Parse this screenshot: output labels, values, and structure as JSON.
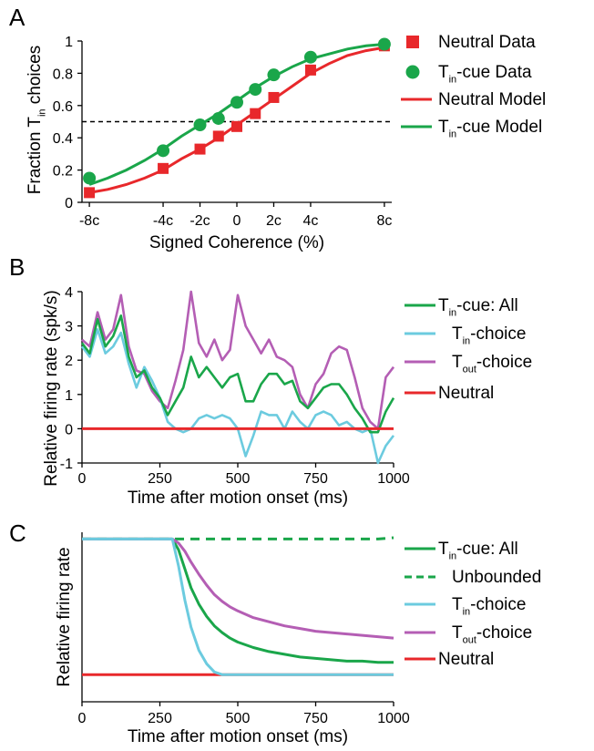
{
  "colors": {
    "neutral": "#e8282b",
    "tin_cue": "#1aa64a",
    "tin_choice": "#6ccbdf",
    "tout_choice": "#b45eb4"
  },
  "chart_data": [
    {
      "panel": "A",
      "type": "scatter",
      "xlabel": "Signed Coherence (%)",
      "ylabel_main": "Fraction T",
      "ylabel_sub": "in",
      "ylabel_end": " choices",
      "x_categories": [
        "-8c",
        "-4c",
        "-2c",
        "0",
        "2c",
        "4c",
        "8c"
      ],
      "x_values": [
        -8,
        -4,
        -2,
        0,
        2,
        4,
        8
      ],
      "ylim": [
        0,
        1
      ],
      "y_ticks": [
        "0",
        "0.2",
        "0.4",
        "0.6",
        "0.8",
        "1"
      ],
      "y_tick_values": [
        0,
        0.2,
        0.4,
        0.6,
        0.8,
        1
      ],
      "reference_line": 0.5,
      "series": [
        {
          "name": "Neutral Data",
          "marker": "square",
          "x": [
            -8,
            -4,
            -2,
            -1,
            0,
            1,
            2,
            4,
            8
          ],
          "y": [
            0.06,
            0.21,
            0.33,
            0.41,
            0.47,
            0.55,
            0.65,
            0.82,
            0.97
          ]
        },
        {
          "name": "Tin-cue Data",
          "marker": "circle",
          "x": [
            -8,
            -4,
            -2,
            -1,
            0,
            1,
            2,
            4,
            8
          ],
          "y": [
            0.15,
            0.32,
            0.48,
            0.52,
            0.62,
            0.7,
            0.79,
            0.9,
            0.98
          ]
        },
        {
          "name": "Neutral Model",
          "marker": "line",
          "x": [
            -8,
            -7,
            -6,
            -5,
            -4,
            -3,
            -2,
            -1,
            0,
            1,
            2,
            3,
            4,
            5,
            6,
            7,
            8
          ],
          "y": [
            0.06,
            0.08,
            0.11,
            0.15,
            0.2,
            0.27,
            0.33,
            0.4,
            0.48,
            0.56,
            0.64,
            0.72,
            0.8,
            0.86,
            0.91,
            0.94,
            0.96
          ]
        },
        {
          "name": "Tin-cue Model",
          "marker": "line",
          "x": [
            -8,
            -7,
            -6,
            -5,
            -4,
            -3,
            -2,
            -1,
            0,
            1,
            2,
            3,
            4,
            5,
            6,
            7,
            8
          ],
          "y": [
            0.11,
            0.15,
            0.2,
            0.26,
            0.33,
            0.41,
            0.48,
            0.55,
            0.63,
            0.71,
            0.78,
            0.84,
            0.89,
            0.92,
            0.95,
            0.97,
            0.98
          ]
        }
      ],
      "legend": [
        {
          "main": "Neutral Data",
          "sub": "",
          "tail": ""
        },
        {
          "main": "T",
          "sub": "in",
          "tail": "-cue Data"
        },
        {
          "main": "Neutral Model",
          "sub": "",
          "tail": ""
        },
        {
          "main": "T",
          "sub": "in",
          "tail": "-cue Model"
        }
      ]
    },
    {
      "panel": "B",
      "type": "line",
      "xlabel": "Time after motion onset (ms)",
      "ylabel": "Relative firing rate (spk/s)",
      "xlim": [
        0,
        1000
      ],
      "ylim": [
        -1,
        4
      ],
      "x_ticks": [
        "0",
        "250",
        "500",
        "750",
        "1000"
      ],
      "x_tick_values": [
        0,
        250,
        500,
        750,
        1000
      ],
      "y_ticks": [
        "-1",
        "0",
        "1",
        "2",
        "3",
        "4"
      ],
      "y_tick_values": [
        -1,
        0,
        1,
        2,
        3,
        4
      ],
      "x": [
        0,
        25,
        50,
        75,
        100,
        125,
        150,
        175,
        200,
        225,
        250,
        275,
        300,
        325,
        350,
        375,
        400,
        425,
        450,
        475,
        500,
        525,
        550,
        575,
        600,
        625,
        650,
        675,
        700,
        725,
        750,
        775,
        800,
        825,
        850,
        875,
        900,
        925,
        950,
        975,
        1000
      ],
      "series": [
        {
          "name": "Tin-cue: All",
          "values": [
            2.5,
            2.2,
            3.2,
            2.4,
            2.7,
            3.3,
            2.1,
            1.5,
            1.7,
            1.2,
            0.9,
            0.4,
            0.8,
            1.2,
            2.1,
            1.5,
            1.8,
            1.5,
            1.2,
            1.5,
            1.6,
            0.8,
            0.8,
            1.3,
            1.6,
            1.6,
            1.3,
            1.4,
            0.8,
            0.6,
            0.9,
            1.2,
            1.3,
            1.3,
            1.0,
            0.6,
            0.3,
            -0.1,
            -0.1,
            0.5,
            0.9
          ]
        },
        {
          "name": "Tin-choice",
          "values": [
            2.4,
            2.1,
            2.9,
            2.2,
            2.4,
            2.8,
            1.9,
            1.2,
            1.8,
            1.4,
            0.9,
            0.2,
            0.0,
            -0.1,
            0.0,
            0.3,
            0.4,
            0.3,
            0.4,
            0.3,
            0.0,
            -0.8,
            -0.2,
            0.5,
            0.4,
            0.4,
            0.0,
            0.5,
            0.2,
            0.0,
            0.4,
            0.5,
            0.4,
            0.1,
            0.2,
            0.0,
            -0.1,
            0.0,
            -1.0,
            -0.5,
            -0.2
          ]
        },
        {
          "name": "Tout-choice",
          "values": [
            2.6,
            2.4,
            3.4,
            2.6,
            2.9,
            3.9,
            2.4,
            1.7,
            1.6,
            1.1,
            0.8,
            0.6,
            1.4,
            2.3,
            4.0,
            2.5,
            2.1,
            2.6,
            2.0,
            2.3,
            3.9,
            3.0,
            2.6,
            2.2,
            2.6,
            2.1,
            2.0,
            1.8,
            1.0,
            0.6,
            1.3,
            1.6,
            2.2,
            2.4,
            2.3,
            1.5,
            0.6,
            0.2,
            0.0,
            1.5,
            1.8
          ]
        },
        {
          "name": "Neutral",
          "values": [
            0,
            0,
            0,
            0,
            0,
            0,
            0,
            0,
            0,
            0,
            0,
            0,
            0,
            0,
            0,
            0,
            0,
            0,
            0,
            0,
            0,
            0,
            0,
            0,
            0,
            0,
            0,
            0,
            0,
            0,
            0,
            0,
            0,
            0,
            0,
            0,
            0,
            0,
            0,
            0,
            0
          ]
        }
      ],
      "legend": [
        {
          "main": "T",
          "sub": "in",
          "tail": "-cue: All"
        },
        {
          "main": "T",
          "sub": "in",
          "tail": "-choice"
        },
        {
          "main": "T",
          "sub": "out",
          "tail": "-choice"
        },
        {
          "main": "Neutral",
          "sub": "",
          "tail": ""
        }
      ]
    },
    {
      "panel": "C",
      "type": "line",
      "xlabel": "Time after motion onset (ms)",
      "ylabel": "Relative firing rate",
      "xlim": [
        0,
        1000
      ],
      "ylim": [
        -0.2,
        1.05
      ],
      "x_ticks": [
        "0",
        "250",
        "500",
        "750",
        "1000"
      ],
      "x_tick_values": [
        0,
        250,
        500,
        750,
        1000
      ],
      "x": [
        0,
        100,
        200,
        290,
        310,
        330,
        350,
        375,
        400,
        425,
        450,
        475,
        500,
        550,
        600,
        650,
        700,
        750,
        800,
        850,
        900,
        950,
        1000
      ],
      "series": [
        {
          "name": "Tin-cue: All",
          "values": [
            1.0,
            1.0,
            1.0,
            1.0,
            0.92,
            0.78,
            0.64,
            0.52,
            0.43,
            0.36,
            0.31,
            0.27,
            0.24,
            0.2,
            0.17,
            0.15,
            0.13,
            0.12,
            0.11,
            0.1,
            0.1,
            0.09,
            0.09
          ]
        },
        {
          "name": "Unbounded",
          "values": [
            1.0,
            1.0,
            1.0,
            1.0,
            1.0,
            1.0,
            1.0,
            1.0,
            1.0,
            1.0,
            1.0,
            1.0,
            1.0,
            1.0,
            1.0,
            1.0,
            1.0,
            1.0,
            1.0,
            1.0,
            1.0,
            1.0,
            1.01
          ],
          "dashed": true
        },
        {
          "name": "Tin-choice",
          "values": [
            1.0,
            1.0,
            1.0,
            1.0,
            0.8,
            0.55,
            0.35,
            0.18,
            0.08,
            0.02,
            0.0,
            0.0,
            0.0,
            0.0,
            0.0,
            0.0,
            0.0,
            0.0,
            0.0,
            0.0,
            0.0,
            0.0,
            0.0
          ]
        },
        {
          "name": "Tout-choice",
          "values": [
            1.0,
            1.0,
            1.0,
            1.0,
            0.97,
            0.91,
            0.83,
            0.74,
            0.66,
            0.59,
            0.54,
            0.5,
            0.47,
            0.42,
            0.39,
            0.36,
            0.34,
            0.32,
            0.31,
            0.3,
            0.29,
            0.28,
            0.27
          ]
        },
        {
          "name": "Neutral",
          "values": [
            0,
            0,
            0,
            0,
            0,
            0,
            0,
            0,
            0,
            0,
            0,
            0,
            0,
            0,
            0,
            0,
            0,
            0,
            0,
            0,
            0,
            0,
            0
          ]
        }
      ],
      "legend": [
        {
          "main": "T",
          "sub": "in",
          "tail": "-cue: All"
        },
        {
          "main": "Unbounded",
          "sub": "",
          "tail": ""
        },
        {
          "main": "T",
          "sub": "in",
          "tail": "-choice"
        },
        {
          "main": "T",
          "sub": "out",
          "tail": "-choice"
        },
        {
          "main": "Neutral",
          "sub": "",
          "tail": ""
        }
      ]
    }
  ]
}
